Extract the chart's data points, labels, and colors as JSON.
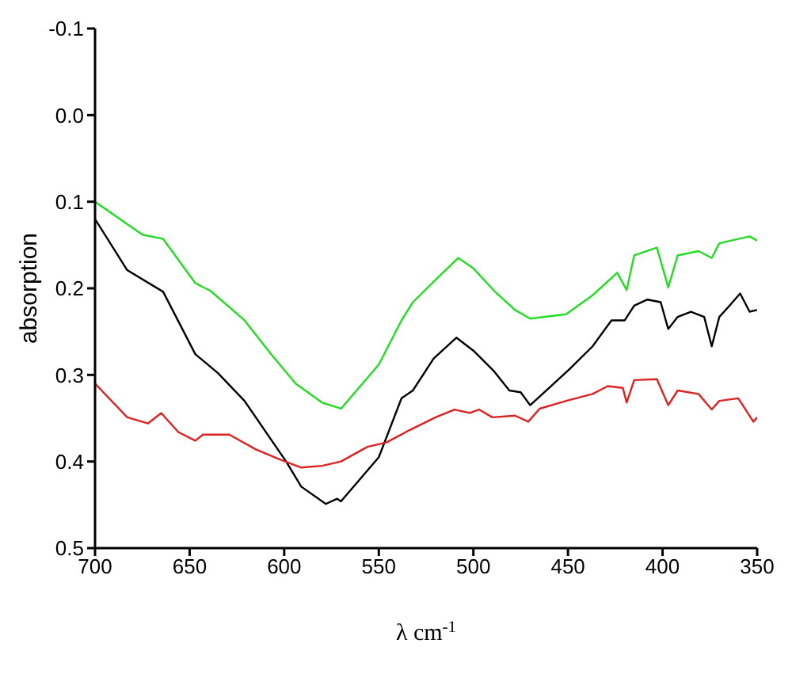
{
  "chart_data": {
    "type": "line",
    "xlabel": "λ cm$^{-1}$",
    "ylabel": "absorption",
    "xlim": [
      700,
      350
    ],
    "xticks": [
      700,
      650,
      600,
      550,
      500,
      450,
      400,
      350
    ],
    "ylim": [
      0.5,
      -0.1
    ],
    "yticks": [
      -0.1,
      {
        "value": 0,
        "label": "0.0"
      },
      0.1,
      0.2,
      0.3,
      0.4,
      0.5
    ],
    "grid": false,
    "marker": "none",
    "line_style": "solid",
    "series": [
      {
        "color": "#22dd22",
        "x": [
          700,
          675,
          664,
          647,
          639,
          621,
          607,
          594,
          580,
          570,
          550,
          538,
          532,
          518,
          508,
          500,
          489,
          478,
          470,
          451,
          437,
          424,
          419,
          415,
          403,
          397,
          392,
          381,
          374,
          370,
          354,
          350
        ],
        "values": [
          0.1,
          0.138,
          0.143,
          0.194,
          0.203,
          0.237,
          0.276,
          0.31,
          0.332,
          0.339,
          0.288,
          0.237,
          0.216,
          0.186,
          0.165,
          0.177,
          0.203,
          0.225,
          0.235,
          0.23,
          0.208,
          0.182,
          0.202,
          0.162,
          0.153,
          0.199,
          0.162,
          0.157,
          0.165,
          0.148,
          0.14,
          0.145
        ]
      },
      {
        "color": "#000000",
        "x": [
          700,
          683,
          664,
          647,
          635,
          621,
          599,
          591,
          578,
          572,
          570,
          550,
          538,
          532,
          521,
          509,
          500,
          489,
          481,
          475,
          470,
          459,
          449,
          437,
          427,
          420,
          415,
          408,
          401,
          397,
          392,
          385,
          378,
          374,
          370,
          365,
          359,
          354,
          350
        ],
        "values": [
          0.12,
          0.179,
          0.204,
          0.276,
          0.298,
          0.33,
          0.4,
          0.429,
          0.449,
          0.443,
          0.446,
          0.395,
          0.327,
          0.318,
          0.281,
          0.257,
          0.272,
          0.296,
          0.318,
          0.32,
          0.335,
          0.313,
          0.293,
          0.267,
          0.237,
          0.237,
          0.22,
          0.213,
          0.216,
          0.247,
          0.233,
          0.227,
          0.233,
          0.267,
          0.233,
          0.221,
          0.206,
          0.227,
          0.225
        ]
      },
      {
        "color": "#dd2222",
        "x": [
          700,
          683,
          672,
          665,
          656,
          647,
          643,
          629,
          615,
          602,
          591,
          580,
          570,
          556,
          546,
          534,
          520,
          510,
          502,
          497,
          490,
          478,
          471,
          465,
          451,
          437,
          429,
          421,
          419,
          415,
          403,
          397,
          392,
          381,
          374,
          370,
          360,
          352,
          350
        ],
        "values": [
          0.31,
          0.349,
          0.356,
          0.344,
          0.366,
          0.376,
          0.369,
          0.369,
          0.386,
          0.398,
          0.407,
          0.405,
          0.4,
          0.383,
          0.378,
          0.364,
          0.349,
          0.34,
          0.344,
          0.34,
          0.349,
          0.347,
          0.354,
          0.339,
          0.33,
          0.322,
          0.313,
          0.315,
          0.332,
          0.306,
          0.305,
          0.335,
          0.318,
          0.322,
          0.34,
          0.33,
          0.327,
          0.354,
          0.349
        ]
      }
    ]
  }
}
